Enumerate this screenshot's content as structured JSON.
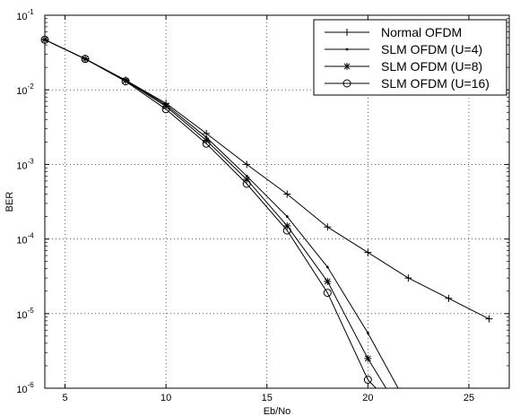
{
  "chart_data": {
    "type": "line",
    "title": "",
    "xlabel": "Eb/No",
    "ylabel": "BER",
    "xlim": [
      4,
      27
    ],
    "ylim": [
      1e-06,
      0.1
    ],
    "yscale": "log",
    "grid": true,
    "legend_position": "top-right",
    "xticks": [
      5,
      10,
      15,
      20,
      25
    ],
    "yticks": [
      {
        "value": 1e-06,
        "base": "10",
        "exp": "-6"
      },
      {
        "value": 1e-05,
        "base": "10",
        "exp": "-5"
      },
      {
        "value": 0.0001,
        "base": "10",
        "exp": "-4"
      },
      {
        "value": 0.001,
        "base": "10",
        "exp": "-3"
      },
      {
        "value": 0.01,
        "base": "10",
        "exp": "-2"
      },
      {
        "value": 0.1,
        "base": "10",
        "exp": "-1"
      }
    ],
    "series": [
      {
        "name": "Normal OFDM",
        "marker": "plus",
        "x": [
          4,
          6,
          8,
          10,
          12,
          14,
          16,
          18,
          20,
          22,
          24,
          26
        ],
        "y": [
          0.047,
          0.026,
          0.0135,
          0.0066,
          0.0026,
          0.001,
          0.0004,
          0.000145,
          6.6e-05,
          3e-05,
          1.6e-05,
          8.5e-06
        ]
      },
      {
        "name": "SLM OFDM (U=4)",
        "marker": "dot",
        "x": [
          4,
          6,
          8,
          10,
          12,
          14,
          16,
          18,
          20,
          21.5
        ],
        "y": [
          0.047,
          0.026,
          0.0135,
          0.0063,
          0.0023,
          0.0007,
          0.0002,
          4.2e-05,
          5.5e-06,
          1e-06
        ]
      },
      {
        "name": "SLM OFDM (U=8)",
        "marker": "star",
        "x": [
          4,
          6,
          8,
          10,
          12,
          14,
          16,
          18,
          20,
          20.9
        ],
        "y": [
          0.047,
          0.026,
          0.0133,
          0.006,
          0.0021,
          0.00063,
          0.00015,
          2.7e-05,
          2.5e-06,
          1e-06
        ]
      },
      {
        "name": "SLM OFDM (U=16)",
        "marker": "circle",
        "x": [
          4,
          6,
          8,
          10,
          12,
          14,
          16,
          18,
          20,
          20.4
        ],
        "y": [
          0.047,
          0.026,
          0.013,
          0.0055,
          0.0019,
          0.00055,
          0.00013,
          1.9e-05,
          1.3e-06,
          1e-06
        ]
      }
    ]
  }
}
